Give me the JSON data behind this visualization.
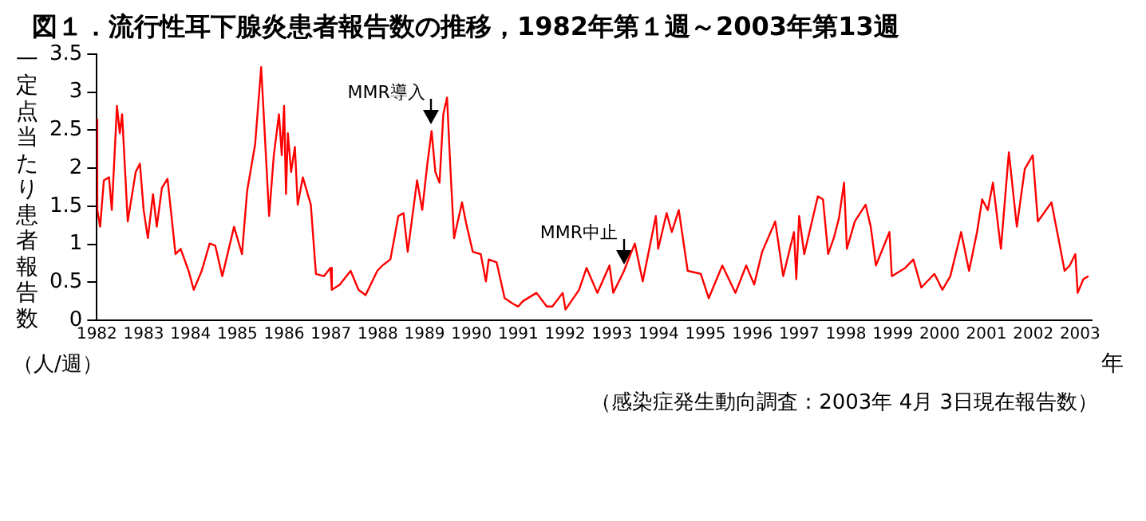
{
  "chart_data": {
    "type": "line",
    "title": "図１．流行性耳下腺炎患者報告数の推移，1982年第１週～2003年第13週",
    "ylabel": "一定点当たり患者報告数",
    "xlabel": "年",
    "color": "#ff0000",
    "marker": "none",
    "annotations": [
      "（人/週）",
      "（感染症発生動向調査：2003年 4月 3日現在報告数）",
      {
        "text": "MMR導入",
        "x": 1989.15,
        "y": 2.49
      },
      {
        "text": "MMR中止",
        "x": 1993.26,
        "y": 0.65
      }
    ],
    "x": [
      1982.0,
      1982.01,
      1982.07,
      1982.15,
      1982.26,
      1982.32,
      1982.43,
      1982.49,
      1982.54,
      1982.66,
      1982.83,
      1982.92,
      1983.0,
      1983.09,
      1983.2,
      1983.28,
      1983.39,
      1983.51,
      1983.68,
      1983.79,
      1983.96,
      1984.07,
      1984.24,
      1984.41,
      1984.53,
      1984.68,
      1984.93,
      1985.1,
      1985.21,
      1985.38,
      1985.51,
      1985.58,
      1985.68,
      1985.78,
      1985.89,
      1985.95,
      1986.0,
      1986.04,
      1986.08,
      1986.15,
      1986.23,
      1986.29,
      1986.4,
      1986.57,
      1986.68,
      1986.85,
      1986.99,
      1987.02,
      1987.19,
      1987.42,
      1987.59,
      1987.74,
      1987.99,
      1988.1,
      1988.27,
      1988.44,
      1988.55,
      1988.64,
      1988.84,
      1988.95,
      1989.06,
      1989.15,
      1989.23,
      1989.32,
      1989.4,
      1989.48,
      1989.55,
      1989.63,
      1989.8,
      1989.89,
      1990.03,
      1990.2,
      1990.31,
      1990.37,
      1990.54,
      1990.71,
      1990.88,
      1991.0,
      1991.1,
      1991.39,
      1991.61,
      1991.73,
      1991.95,
      1992.01,
      1992.3,
      1992.46,
      1992.69,
      1992.95,
      1993.03,
      1993.26,
      1993.49,
      1993.66,
      1993.94,
      1993.99,
      1994.17,
      1994.28,
      1994.43,
      1994.62,
      1994.9,
      1995.07,
      1995.36,
      1995.64,
      1995.87,
      1996.04,
      1996.21,
      1996.49,
      1996.66,
      1996.89,
      1996.94,
      1997.0,
      1997.11,
      1997.4,
      1997.51,
      1997.62,
      1997.74,
      1997.85,
      1997.96,
      1998.02,
      1998.19,
      1998.42,
      1998.53,
      1998.64,
      1998.93,
      1998.98,
      1999.27,
      1999.44,
      1999.61,
      1999.89,
      2000.06,
      2000.23,
      2000.46,
      2000.63,
      2000.8,
      2000.91,
      2001.03,
      2001.14,
      2001.31,
      2001.48,
      2001.65,
      2001.82,
      2001.99,
      2002.1,
      2002.39,
      2002.56,
      2002.67,
      2002.78,
      2002.9,
      2002.95,
      2003.07,
      2003.18
    ],
    "values": [
      2.64,
      1.45,
      1.23,
      1.84,
      1.88,
      1.45,
      2.82,
      2.46,
      2.71,
      1.3,
      1.95,
      2.06,
      1.45,
      1.08,
      1.66,
      1.23,
      1.74,
      1.86,
      0.87,
      0.94,
      0.65,
      0.4,
      0.65,
      1.01,
      0.98,
      0.58,
      1.23,
      0.87,
      1.7,
      2.31,
      3.33,
      2.53,
      1.37,
      2.17,
      2.71,
      2.17,
      2.82,
      1.66,
      2.46,
      1.95,
      2.28,
      1.52,
      1.88,
      1.52,
      0.61,
      0.58,
      0.69,
      0.4,
      0.47,
      0.65,
      0.4,
      0.33,
      0.65,
      0.72,
      0.8,
      1.37,
      1.41,
      0.9,
      1.84,
      1.45,
      2.06,
      2.49,
      1.95,
      1.81,
      2.71,
      2.93,
      2.02,
      1.08,
      1.55,
      1.27,
      0.9,
      0.87,
      0.51,
      0.8,
      0.76,
      0.29,
      0.22,
      0.18,
      0.25,
      0.36,
      0.18,
      0.18,
      0.36,
      0.14,
      0.4,
      0.69,
      0.36,
      0.72,
      0.36,
      0.65,
      1.01,
      0.51,
      1.37,
      0.94,
      1.41,
      1.16,
      1.45,
      0.65,
      0.61,
      0.29,
      0.72,
      0.36,
      0.72,
      0.47,
      0.9,
      1.3,
      0.58,
      1.16,
      0.54,
      1.37,
      0.87,
      1.63,
      1.59,
      0.87,
      1.08,
      1.34,
      1.81,
      0.94,
      1.3,
      1.52,
      1.23,
      0.72,
      1.16,
      0.58,
      0.69,
      0.8,
      0.43,
      0.61,
      0.4,
      0.58,
      1.16,
      0.65,
      1.16,
      1.59,
      1.45,
      1.81,
      0.94,
      2.21,
      1.23,
      1.99,
      2.17,
      1.3,
      1.55,
      1.01,
      0.65,
      0.72,
      0.87,
      0.36,
      0.54,
      0.58
    ],
    "xlim": [
      1982,
      2003.25
    ],
    "xticks": [
      1982,
      1983,
      1984,
      1985,
      1986,
      1987,
      1988,
      1989,
      1990,
      1991,
      1992,
      1993,
      1994,
      1995,
      1996,
      1997,
      1998,
      1999,
      2000,
      2001,
      2002,
      2003
    ],
    "ylim": [
      0,
      3.5
    ],
    "yticks": [
      0,
      0.5,
      1,
      1.5,
      2,
      2.5,
      3,
      3.5
    ]
  }
}
